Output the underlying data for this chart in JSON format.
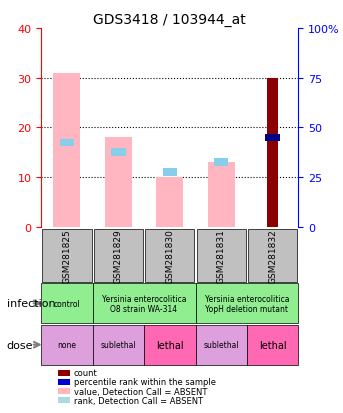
{
  "title": "GDS3418 / 103944_at",
  "samples": [
    "GSM281825",
    "GSM281829",
    "GSM281830",
    "GSM281831",
    "GSM281832"
  ],
  "bar_values_pink": [
    31,
    18,
    10,
    13,
    0
  ],
  "bar_values_dark_red": [
    0,
    0,
    0,
    0,
    30
  ],
  "rank_blue_absent": [
    17,
    15,
    11,
    13,
    18
  ],
  "rank_blue_present": [
    0,
    0,
    0,
    0,
    18
  ],
  "ylim_left": [
    0,
    40
  ],
  "ylim_right": [
    0,
    100
  ],
  "yticks_left": [
    0,
    10,
    20,
    30,
    40
  ],
  "yticks_right": [
    0,
    25,
    50,
    75,
    100
  ],
  "infection_row": {
    "label": "infection",
    "cells": [
      {
        "text": "control",
        "color": "#90EE90",
        "colspan": 1
      },
      {
        "text": "Yersinia enterocolitica\nO8 strain WA-314",
        "color": "#90EE90",
        "colspan": 2
      },
      {
        "text": "Yersinia enterocolitica\nYopH deletion mutant",
        "color": "#90EE90",
        "colspan": 2
      }
    ]
  },
  "dose_row": {
    "label": "dose",
    "cells": [
      {
        "text": "none",
        "color": "#DDA0DD",
        "colspan": 1
      },
      {
        "text": "sublethal",
        "color": "#DDA0DD",
        "colspan": 1
      },
      {
        "text": "lethal",
        "color": "#FF69B4",
        "colspan": 1
      },
      {
        "text": "sublethal",
        "color": "#DDA0DD",
        "colspan": 1
      },
      {
        "text": "lethal",
        "color": "#FF69B4",
        "colspan": 1
      }
    ]
  },
  "legend_items": [
    {
      "color": "#8B0000",
      "label": "count"
    },
    {
      "color": "#0000CD",
      "label": "percentile rank within the sample"
    },
    {
      "color": "#FFB6C1",
      "label": "value, Detection Call = ABSENT"
    },
    {
      "color": "#ADD8E6",
      "label": "rank, Detection Call = ABSENT"
    }
  ],
  "pink_color": "#FFB6C1",
  "dark_red_color": "#8B0000",
  "blue_absent_color": "#87CEEB",
  "blue_present_color": "#00008B",
  "bar_width": 0.35
}
